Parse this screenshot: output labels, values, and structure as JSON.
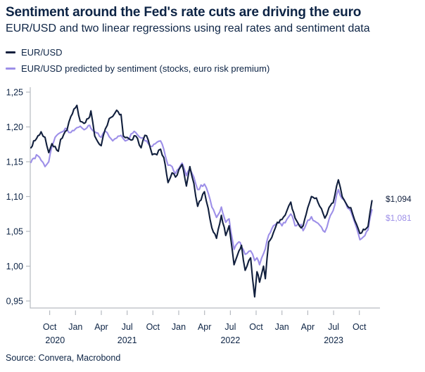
{
  "header": {
    "title": "Sentiment around the Fed's rate cuts are driving the euro",
    "subtitle": "EUR/USD and two linear regressions using real rates and sentiment data"
  },
  "footer": {
    "source": "Source: Convera, Macrobond"
  },
  "colors": {
    "text_navy": "#0d2445",
    "axis_gray": "#b6bac0"
  },
  "chart_data": {
    "type": "line",
    "title": "Sentiment around the Fed's rate cuts are driving the euro",
    "y_axis": {
      "range_shown": [
        0.95,
        1.25
      ],
      "tick_values": [
        1.25,
        1.2,
        1.15,
        1.1,
        1.05,
        1.0,
        0.95
      ],
      "tick_labels": [
        "1,25",
        "1,20",
        "1,15",
        "1,10",
        "1,05",
        "1,00",
        "0,95"
      ]
    },
    "x_axis": {
      "ticks": [
        {
          "label": "Oct",
          "date": "2020-10-01"
        },
        {
          "label": "Jan",
          "date": "2021-01-01"
        },
        {
          "label": "Apr",
          "date": "2021-04-01"
        },
        {
          "label": "Jul",
          "date": "2021-07-01"
        },
        {
          "label": "Oct",
          "date": "2021-10-01"
        },
        {
          "label": "Jan",
          "date": "2022-01-01"
        },
        {
          "label": "Apr",
          "date": "2022-04-01"
        },
        {
          "label": "Jul",
          "date": "2022-07-01"
        },
        {
          "label": "Oct",
          "date": "2022-10-01"
        },
        {
          "label": "Jan",
          "date": "2023-01-01"
        },
        {
          "label": "Apr",
          "date": "2023-04-01"
        },
        {
          "label": "Jul",
          "date": "2023-07-01"
        },
        {
          "label": "Oct",
          "date": "2023-10-01"
        }
      ],
      "years": [
        {
          "label": "2020",
          "date": "2020-10-20"
        },
        {
          "label": "2021",
          "date": "2021-07-01"
        },
        {
          "label": "2022",
          "date": "2022-07-01"
        },
        {
          "label": "2023",
          "date": "2023-07-01"
        }
      ]
    },
    "end_labels": [
      {
        "text": "$1,094",
        "value": 1.094
      },
      {
        "text": "$1,081",
        "value": 1.081
      }
    ],
    "dates": [
      "2020-07-26",
      "2020-08-05",
      "2020-08-15",
      "2020-09-01",
      "2020-09-15",
      "2020-09-28",
      "2020-10-09",
      "2020-10-20",
      "2020-11-01",
      "2020-11-09",
      "2020-11-15",
      "2020-12-01",
      "2020-12-15",
      "2021-01-06",
      "2021-01-18",
      "2021-02-01",
      "2021-02-16",
      "2021-02-25",
      "2021-03-08",
      "2021-03-31",
      "2021-04-15",
      "2021-04-29",
      "2021-05-11",
      "2021-05-25",
      "2021-06-10",
      "2021-06-18",
      "2021-07-01",
      "2021-07-15",
      "2021-08-01",
      "2021-08-20",
      "2021-09-03",
      "2021-09-15",
      "2021-09-29",
      "2021-10-15",
      "2021-10-28",
      "2021-11-09",
      "2021-11-24",
      "2021-12-08",
      "2021-12-20",
      "2022-01-13",
      "2022-01-28",
      "2022-02-10",
      "2022-02-24",
      "2022-03-07",
      "2022-03-31",
      "2022-04-14",
      "2022-04-27",
      "2022-05-13",
      "2022-05-30",
      "2022-06-15",
      "2022-06-27",
      "2022-07-14",
      "2022-08-01",
      "2022-08-10",
      "2022-08-23",
      "2022-09-12",
      "2022-09-26",
      "2022-10-04",
      "2022-10-13",
      "2022-10-27",
      "2022-11-03",
      "2022-11-15",
      "2022-12-01",
      "2022-12-15",
      "2023-01-01",
      "2023-01-18",
      "2023-02-02",
      "2023-02-17",
      "2023-03-08",
      "2023-03-15",
      "2023-04-01",
      "2023-04-14",
      "2023-05-01",
      "2023-05-31",
      "2023-06-15",
      "2023-06-30",
      "2023-07-18",
      "2023-08-01",
      "2023-08-15",
      "2023-09-01",
      "2023-09-15",
      "2023-10-03",
      "2023-10-15",
      "2023-11-01",
      "2023-11-15"
    ],
    "series": [
      {
        "name": "EUR/USD",
        "color": "#111f3d",
        "values": [
          1.17,
          1.18,
          1.183,
          1.193,
          1.185,
          1.163,
          1.176,
          1.172,
          1.165,
          1.182,
          1.184,
          1.195,
          1.215,
          1.231,
          1.208,
          1.205,
          1.212,
          1.223,
          1.187,
          1.173,
          1.197,
          1.212,
          1.215,
          1.224,
          1.218,
          1.187,
          1.185,
          1.181,
          1.187,
          1.17,
          1.188,
          1.181,
          1.16,
          1.16,
          1.168,
          1.156,
          1.12,
          1.134,
          1.128,
          1.146,
          1.115,
          1.143,
          1.119,
          1.086,
          1.107,
          1.083,
          1.055,
          1.04,
          1.073,
          1.044,
          1.058,
          1.002,
          1.022,
          1.03,
          0.994,
          1.012,
          0.956,
          0.992,
          0.977,
          1.0,
          0.982,
          1.035,
          1.048,
          1.063,
          1.067,
          1.079,
          1.092,
          1.069,
          1.055,
          1.058,
          1.084,
          1.1,
          1.098,
          1.069,
          1.084,
          1.091,
          1.124,
          1.1,
          1.09,
          1.084,
          1.066,
          1.047,
          1.053,
          1.057,
          1.094
        ]
      },
      {
        "name": "EUR/USD predicted by sentiment (stocks, euro risk premium)",
        "color": "#9d8fe8",
        "values": [
          1.149,
          1.155,
          1.16,
          1.152,
          1.143,
          1.15,
          1.172,
          1.185,
          1.19,
          1.192,
          1.193,
          1.197,
          1.192,
          1.199,
          1.201,
          1.196,
          1.202,
          1.198,
          1.193,
          1.185,
          1.194,
          1.186,
          1.18,
          1.184,
          1.188,
          1.183,
          1.181,
          1.19,
          1.192,
          1.184,
          1.18,
          1.176,
          1.172,
          1.178,
          1.18,
          1.168,
          1.145,
          1.143,
          1.133,
          1.148,
          1.13,
          1.14,
          1.128,
          1.11,
          1.118,
          1.105,
          1.085,
          1.07,
          1.085,
          1.063,
          1.068,
          1.024,
          1.035,
          1.028,
          1.017,
          1.022,
          1.008,
          1.012,
          1.002,
          1.018,
          1.025,
          1.045,
          1.058,
          1.062,
          1.058,
          1.067,
          1.075,
          1.058,
          1.06,
          1.051,
          1.066,
          1.071,
          1.063,
          1.049,
          1.067,
          1.08,
          1.11,
          1.097,
          1.089,
          1.079,
          1.063,
          1.038,
          1.042,
          1.052,
          1.081
        ]
      }
    ]
  }
}
